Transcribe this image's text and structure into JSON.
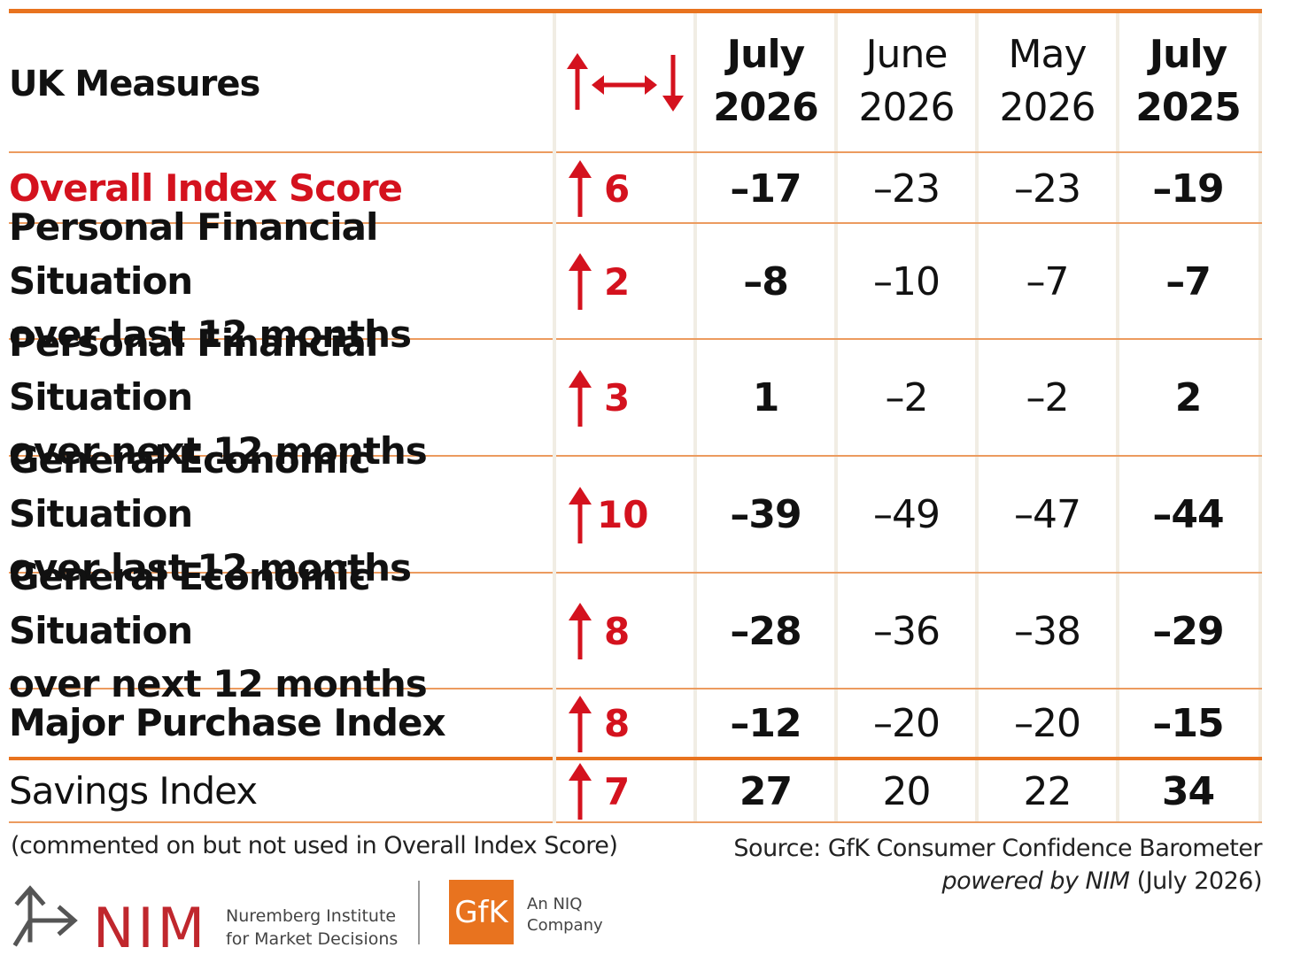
{
  "table": {
    "title": "UK Measures",
    "columns": [
      {
        "line1": "July",
        "line2": "2026"
      },
      {
        "line1": "June",
        "line2": "2026"
      },
      {
        "line1": "May",
        "line2": "2026"
      },
      {
        "line1": "July",
        "line2": "2025"
      }
    ],
    "rows": [
      {
        "line1": "Overall Index Score",
        "line2": "",
        "change": "6",
        "v0": "–17",
        "v1": "–23",
        "v2": "–23",
        "v3": "–19"
      },
      {
        "line1": "Personal Financial Situation",
        "line2": "over last 12 months",
        "change": "2",
        "v0": "–8",
        "v1": "–10",
        "v2": "–7",
        "v3": "–7"
      },
      {
        "line1": "Personal Financial Situation",
        "line2": "over next 12 months",
        "change": "3",
        "v0": "1",
        "v1": "–2",
        "v2": "–2",
        "v3": "2"
      },
      {
        "line1": "General Economic Situation",
        "line2": "over last 12 months",
        "change": "10",
        "v0": "–39",
        "v1": "–49",
        "v2": "–47",
        "v3": "–44"
      },
      {
        "line1": "General Economic Situation",
        "line2": "over next 12 months",
        "change": "8",
        "v0": "–28",
        "v1": "–36",
        "v2": "–38",
        "v3": "–29"
      },
      {
        "line1": "Major Purchase Index",
        "line2": "",
        "change": "8",
        "v0": "–12",
        "v1": "–20",
        "v2": "–20",
        "v3": "–15"
      },
      {
        "line1": "Savings Index",
        "line2": "",
        "change": "7",
        "v0": "27",
        "v1": "20",
        "v2": "22",
        "v3": "34"
      }
    ]
  },
  "footnote": "(commented on but not used in Overall Index Score)",
  "source": {
    "line1": "Source: GfK Consumer Confidence Barometer",
    "line2_italic": "powered by NIM",
    "line2_rest": " (July 2026)"
  },
  "logos": {
    "nim": "NIM",
    "nim_line1": "Nuremberg Institute",
    "nim_line2": "for Market Decisions",
    "gfk": "GfK",
    "gfk_line1": "An NIQ",
    "gfk_line2": "Company"
  },
  "colors": {
    "accent_red": "#d4121e",
    "rule_orange": "#e8731f"
  },
  "icons": {
    "header_change": "up-left-right-down-arrows-icon",
    "row_change": "up-arrow-icon"
  }
}
